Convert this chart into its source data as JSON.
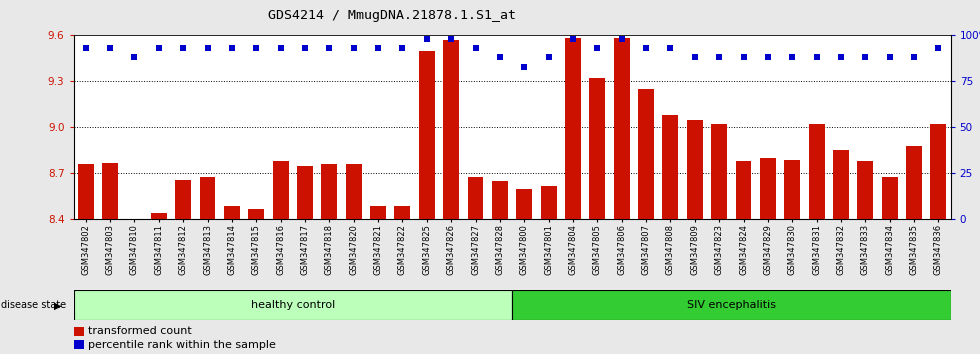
{
  "title": "GDS4214 / MmugDNA.21878.1.S1_at",
  "samples": [
    "GSM347802",
    "GSM347803",
    "GSM347810",
    "GSM347811",
    "GSM347812",
    "GSM347813",
    "GSM347814",
    "GSM347815",
    "GSM347816",
    "GSM347817",
    "GSM347818",
    "GSM347820",
    "GSM347821",
    "GSM347822",
    "GSM347825",
    "GSM347826",
    "GSM347827",
    "GSM347828",
    "GSM347800",
    "GSM347801",
    "GSM347804",
    "GSM347805",
    "GSM347806",
    "GSM347807",
    "GSM347808",
    "GSM347809",
    "GSM347823",
    "GSM347824",
    "GSM347829",
    "GSM347830",
    "GSM347831",
    "GSM347832",
    "GSM347833",
    "GSM347834",
    "GSM347835",
    "GSM347836"
  ],
  "bar_values": [
    8.76,
    8.77,
    8.4,
    8.44,
    8.66,
    8.68,
    8.49,
    8.47,
    8.78,
    8.75,
    8.76,
    8.76,
    8.49,
    8.49,
    9.5,
    9.57,
    8.68,
    8.65,
    8.6,
    8.62,
    9.58,
    9.32,
    9.58,
    9.25,
    9.08,
    9.05,
    9.02,
    8.78,
    8.8,
    8.79,
    9.02,
    8.85,
    8.78,
    8.68,
    8.88,
    9.02
  ],
  "percentile_values": [
    93,
    93,
    88,
    93,
    93,
    93,
    93,
    93,
    93,
    93,
    93,
    93,
    93,
    93,
    98,
    98,
    93,
    88,
    83,
    88,
    98,
    93,
    98,
    93,
    93,
    88,
    88,
    88,
    88,
    88,
    88,
    88,
    88,
    88,
    88,
    93
  ],
  "healthy_count": 18,
  "bar_color": "#cc1100",
  "percentile_color": "#0000cc",
  "healthy_color": "#bbffbb",
  "siv_color": "#33cc33",
  "healthy_label": "healthy control",
  "siv_label": "SIV encephalitis",
  "ylim_left": [
    8.4,
    9.6
  ],
  "ylim_right": [
    0,
    100
  ],
  "yticks_left": [
    8.4,
    8.7,
    9.0,
    9.3,
    9.6
  ],
  "yticks_right": [
    0,
    25,
    50,
    75,
    100
  ],
  "fig_bg": "#e8e8e8",
  "plot_bg": "#ffffff"
}
